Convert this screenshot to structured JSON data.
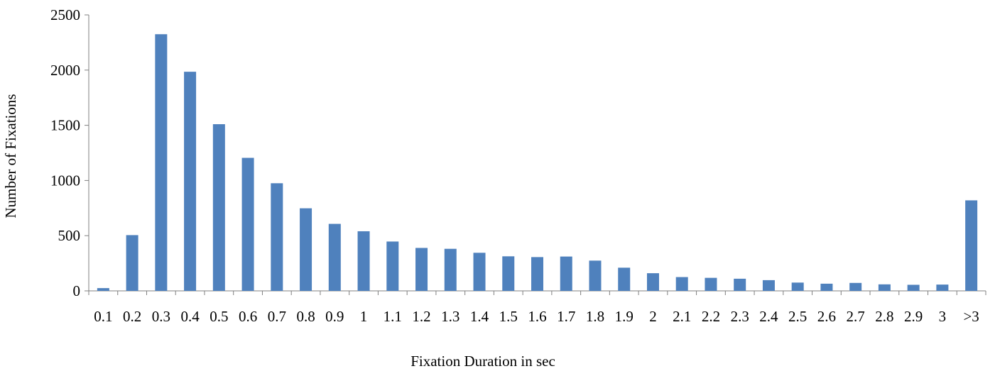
{
  "chart_data": {
    "type": "bar",
    "title": "",
    "xlabel": "Fixation Duration in sec",
    "ylabel": "Number  of Fixations",
    "categories": [
      "0.1",
      "0.2",
      "0.3",
      "0.4",
      "0.5",
      "0.6",
      "0.7",
      "0.8",
      "0.9",
      "1",
      "1.1",
      "1.2",
      "1.3",
      "1.4",
      "1.5",
      "1.6",
      "1.7",
      "1.8",
      "1.9",
      "2",
      "2.1",
      "2.2",
      "2.3",
      "2.4",
      "2.5",
      "2.6",
      "2.7",
      "2.8",
      "2.9",
      "3",
      ">3"
    ],
    "values": [
      25,
      505,
      2325,
      1985,
      1510,
      1205,
      975,
      748,
      607,
      540,
      447,
      389,
      381,
      345,
      313,
      306,
      311,
      274,
      210,
      160,
      125,
      118,
      110,
      97,
      75,
      65,
      72,
      59,
      55,
      57,
      820
    ],
    "ylim": [
      0,
      2500
    ],
    "yticks": [
      "0",
      "500",
      "1000",
      "1500",
      "2000",
      "2500"
    ],
    "grid": false,
    "legend": "none",
    "bar_color": "#4f81bd"
  }
}
